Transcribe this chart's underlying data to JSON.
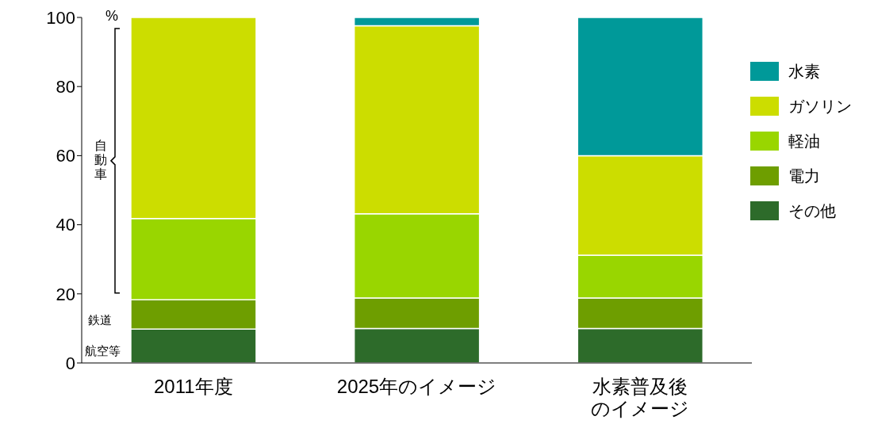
{
  "chart_data": {
    "type": "bar",
    "stacked": true,
    "categories": [
      "2011年度",
      "2025年のイメージ",
      "水素普及後のイメージ"
    ],
    "series": [
      {
        "name": "その他",
        "color": "#2d6b2a",
        "values": [
          9.8,
          10,
          10
        ]
      },
      {
        "name": "電力",
        "color": "#6e9e00",
        "values": [
          8.5,
          8.8,
          8.8
        ]
      },
      {
        "name": "軽油",
        "color": "#99d600",
        "values": [
          23.5,
          24.4,
          12.4
        ]
      },
      {
        "name": "ガソリン",
        "color": "#ccdd00",
        "values": [
          58.2,
          54.4,
          28.8
        ]
      },
      {
        "name": "水素",
        "color": "#009999",
        "values": [
          0,
          2.4,
          40
        ]
      }
    ],
    "ylim": [
      0,
      100
    ],
    "yticks": [
      0,
      20,
      40,
      60,
      80,
      100
    ],
    "grid": false,
    "legend": "right",
    "annotations": [
      "%",
      "自動車",
      "鉄道",
      "航空等"
    ]
  }
}
